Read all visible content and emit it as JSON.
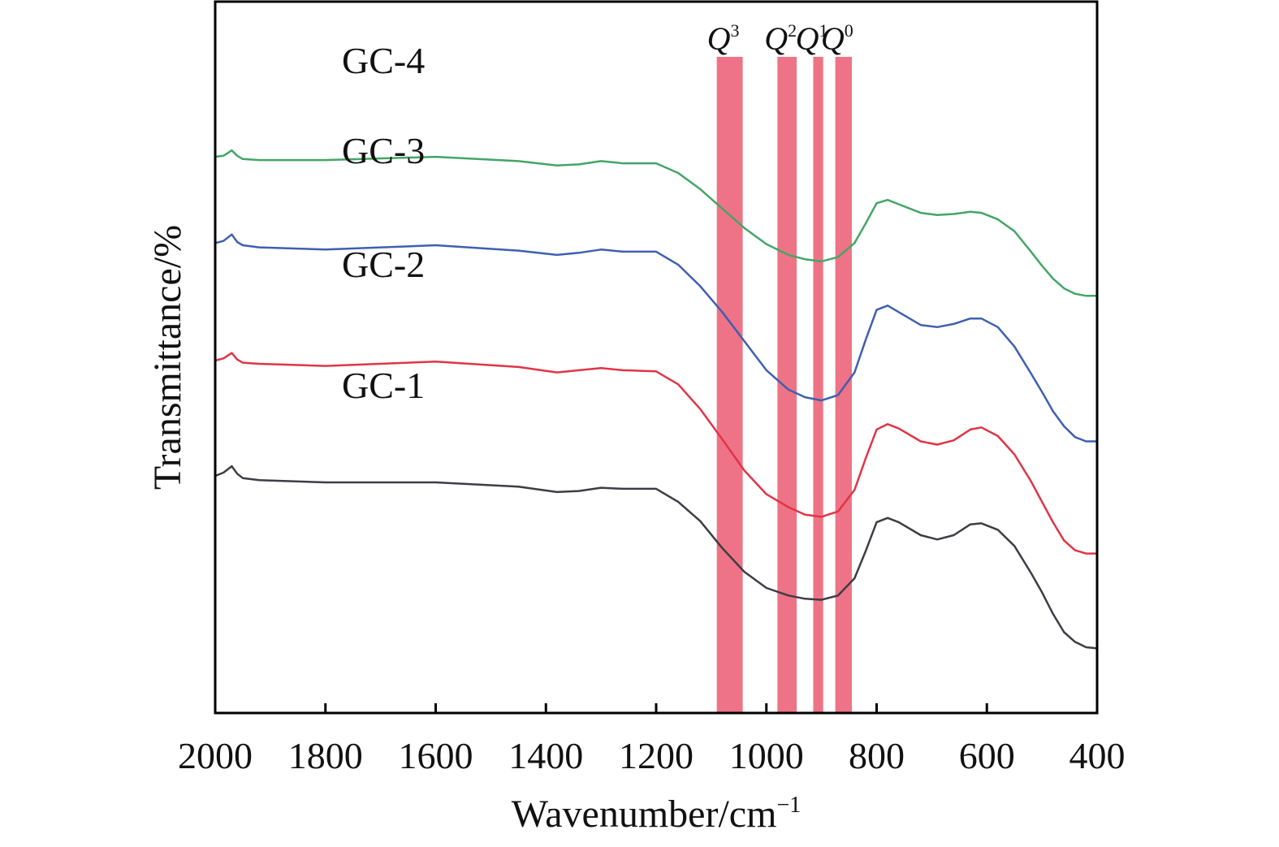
{
  "chart_data": {
    "type": "line",
    "xlabel": "Wavenumber/cm",
    "xlabel_sup": "−1",
    "ylabel": "Transmittance/%",
    "xlim": [
      2000,
      400
    ],
    "xticks": [
      2000,
      1800,
      1600,
      1400,
      1200,
      1000,
      800,
      600,
      400
    ],
    "yticks": [],
    "grid": false,
    "legend": "none (series labelled directly)",
    "bands": [
      {
        "label": "Q",
        "sup": "3",
        "x_from": 1090,
        "x_to": 1043,
        "color": "#ee6c80"
      },
      {
        "label": "Q",
        "sup": "2",
        "x_from": 980,
        "x_to": 945,
        "color": "#ee6c80"
      },
      {
        "label": "Q",
        "sup": "1",
        "x_from": 915,
        "x_to": 897,
        "color": "#ee6c80"
      },
      {
        "label": "Q",
        "sup": "0",
        "x_from": 875,
        "x_to": 845,
        "color": "#ee6c80"
      }
    ],
    "series": [
      {
        "name": "GC-1",
        "color": "#3d3d45",
        "x": [
          2000,
          1985,
          1970,
          1960,
          1950,
          1920,
          1800,
          1600,
          1450,
          1380,
          1340,
          1300,
          1260,
          1200,
          1160,
          1120,
          1080,
          1040,
          1000,
          960,
          930,
          900,
          870,
          840,
          820,
          800,
          780,
          760,
          720,
          690,
          660,
          630,
          610,
          580,
          550,
          520,
          500,
          480,
          460,
          440,
          420,
          400
        ],
        "y": [
          12.0,
          12.3,
          12.9,
          12.2,
          11.8,
          11.6,
          11.4,
          11.4,
          11.0,
          10.5,
          10.6,
          10.9,
          10.8,
          10.8,
          9.6,
          7.8,
          5.3,
          3.1,
          1.6,
          0.9,
          0.6,
          0.5,
          0.9,
          2.5,
          5.0,
          7.7,
          8.1,
          7.7,
          6.5,
          6.1,
          6.5,
          7.5,
          7.6,
          7.0,
          5.5,
          3.0,
          1.2,
          -0.8,
          -2.5,
          -3.4,
          -3.9,
          -4.0
        ]
      },
      {
        "name": "GC-2",
        "color": "#e03546",
        "x": [
          2000,
          1985,
          1970,
          1960,
          1950,
          1920,
          1800,
          1600,
          1450,
          1380,
          1340,
          1300,
          1260,
          1200,
          1160,
          1120,
          1080,
          1040,
          1000,
          960,
          930,
          900,
          870,
          840,
          820,
          800,
          780,
          760,
          720,
          690,
          660,
          630,
          610,
          580,
          550,
          520,
          500,
          480,
          460,
          440,
          420,
          400
        ],
        "y": [
          22.7,
          22.9,
          23.4,
          22.8,
          22.5,
          22.4,
          22.2,
          22.6,
          22.1,
          21.6,
          21.8,
          22.0,
          21.8,
          21.7,
          20.5,
          18.2,
          15.4,
          12.5,
          10.3,
          9.1,
          8.4,
          8.2,
          8.7,
          10.7,
          13.6,
          16.3,
          16.8,
          16.4,
          15.2,
          14.9,
          15.3,
          16.3,
          16.5,
          15.7,
          14.0,
          11.5,
          9.6,
          7.7,
          6.0,
          5.1,
          4.8,
          4.8
        ]
      },
      {
        "name": "GC-3",
        "color": "#3f5fb0",
        "x": [
          2000,
          1985,
          1970,
          1960,
          1950,
          1920,
          1800,
          1600,
          1450,
          1380,
          1340,
          1300,
          1260,
          1200,
          1160,
          1120,
          1080,
          1040,
          1000,
          960,
          930,
          900,
          870,
          840,
          820,
          800,
          780,
          760,
          720,
          690,
          660,
          630,
          610,
          580,
          550,
          520,
          500,
          480,
          460,
          440,
          420,
          400
        ],
        "y": [
          33.6,
          33.8,
          34.4,
          33.7,
          33.4,
          33.2,
          33.0,
          33.4,
          32.9,
          32.5,
          32.7,
          33.0,
          32.8,
          32.8,
          31.6,
          29.6,
          27.2,
          24.5,
          21.8,
          20.0,
          19.3,
          19.0,
          19.5,
          21.6,
          24.6,
          27.4,
          27.8,
          27.2,
          26.0,
          25.8,
          26.1,
          26.6,
          26.6,
          25.8,
          24.0,
          21.5,
          19.8,
          18.0,
          16.6,
          15.6,
          15.2,
          15.2
        ]
      },
      {
        "name": "GC-4",
        "color": "#44a566",
        "x": [
          2000,
          1985,
          1970,
          1960,
          1950,
          1920,
          1800,
          1600,
          1450,
          1380,
          1340,
          1300,
          1260,
          1200,
          1160,
          1120,
          1080,
          1040,
          1000,
          960,
          930,
          900,
          870,
          840,
          820,
          800,
          780,
          760,
          720,
          690,
          660,
          630,
          610,
          580,
          550,
          520,
          500,
          480,
          460,
          440,
          420,
          400
        ],
        "y": [
          41.6,
          41.7,
          42.2,
          41.7,
          41.4,
          41.3,
          41.3,
          41.6,
          41.2,
          40.8,
          40.9,
          41.2,
          41.0,
          41.0,
          40.1,
          38.6,
          36.8,
          35.0,
          33.5,
          32.5,
          32.1,
          31.9,
          32.3,
          33.6,
          35.4,
          37.3,
          37.6,
          37.2,
          36.4,
          36.2,
          36.3,
          36.5,
          36.4,
          35.8,
          34.7,
          32.8,
          31.5,
          30.3,
          29.4,
          28.9,
          28.7,
          28.7
        ]
      }
    ]
  }
}
